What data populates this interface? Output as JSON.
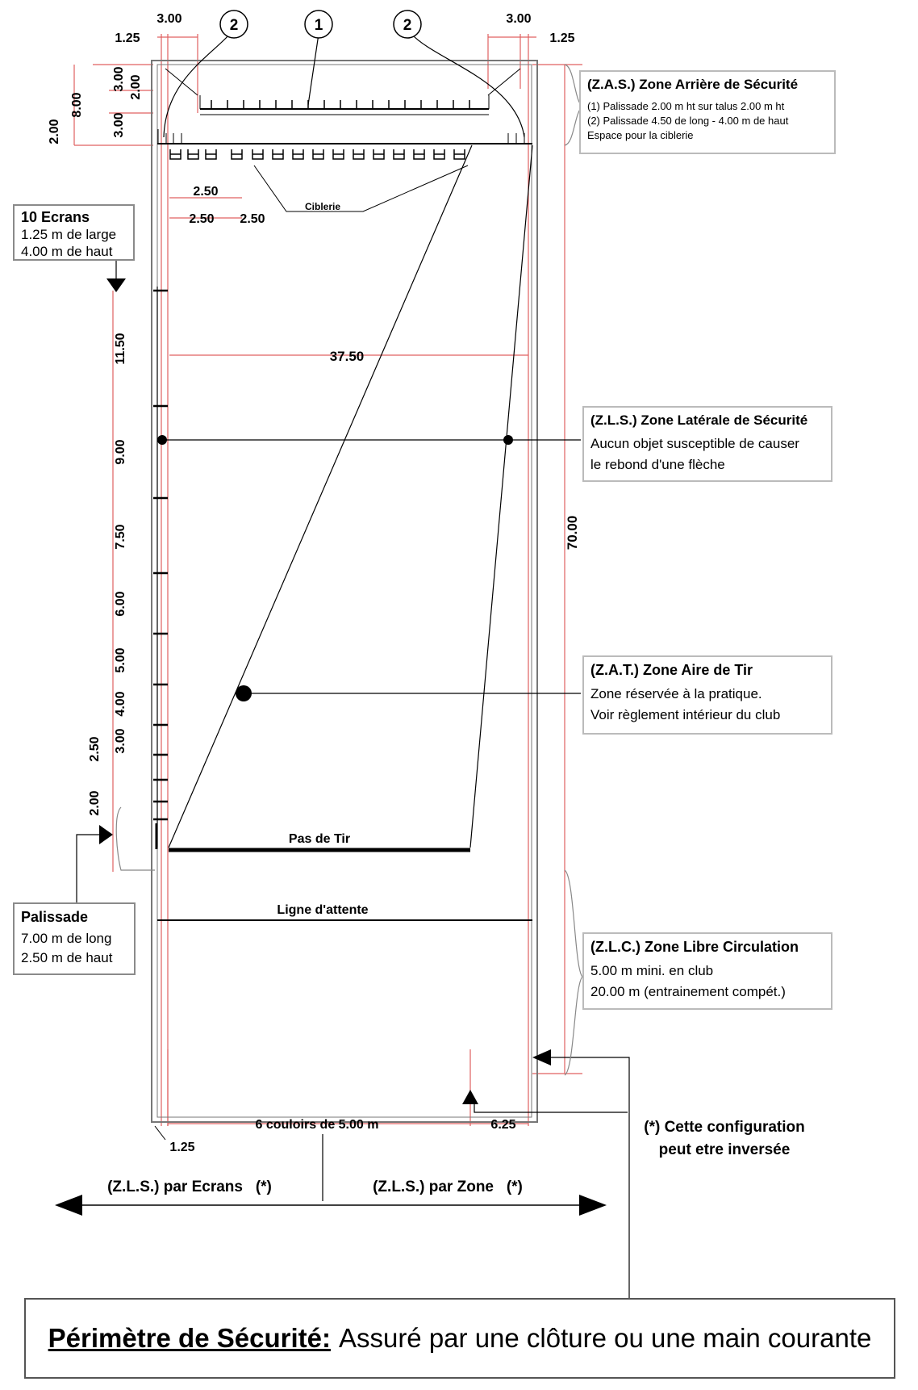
{
  "top_dims": {
    "left_125": "1.25",
    "left_300": "3.00",
    "right_300": "3.00",
    "right_125": "1.25"
  },
  "callouts": {
    "c1": "1",
    "c2a": "2",
    "c2b": "2"
  },
  "left_dims": {
    "d800": "8.00",
    "d300a": "3.00",
    "d200a": "2.00",
    "d300b": "3.00",
    "d200b": "2.00"
  },
  "ciblerie": {
    "d250a": "2.50",
    "d250b": "2.50",
    "d250c": "2.50",
    "label": "Ciblerie"
  },
  "ecrans": {
    "title": "10 Ecrans",
    "line1": "1.25 m de large",
    "line2": "4.00 m de haut"
  },
  "screen_dims": {
    "d1150": "11.50",
    "d900": "9.00",
    "d750": "7.50",
    "d600": "6.00",
    "d500": "5.00",
    "d400": "4.00",
    "d300": "3.00",
    "d250": "2.50",
    "d200": "2.00"
  },
  "width_dim": "37.50",
  "length_dim": "70.00",
  "zas": {
    "title": "(Z.A.S.) Zone Arrière de Sécurité",
    "line1": "(1) Palissade 2.00 m ht sur talus 2.00 m ht",
    "line2": "(2) Palissade 4.50 de long - 4.00 m de haut",
    "line3": "Espace pour la ciblerie"
  },
  "zls": {
    "title": "(Z.L.S.) Zone Latérale de Sécurité",
    "line1": "Aucun objet susceptible de causer",
    "line2": "le rebond d'une flèche"
  },
  "zat": {
    "title": "(Z.A.T.) Zone Aire de Tir",
    "line1": "Zone réservée à la pratique.",
    "line2": "Voir règlement intérieur du club"
  },
  "pas_de_tir": "Pas de Tir",
  "ligne_attente": "Ligne d'attente",
  "palissade": {
    "title": "Palissade",
    "line1": "7.00 m de long",
    "line2": "2.50 m de haut"
  },
  "zlc": {
    "title": "(Z.L.C.) Zone Libre Circulation",
    "line1": "5.00 m mini. en club",
    "line2": "20.00 m (entrainement compét.)"
  },
  "bottom_dims": {
    "couloirs": "6 couloirs de 5.00 m",
    "d625": "6.25",
    "d125": "1.25"
  },
  "inversee": {
    "line1": "(*) Cette configuration",
    "line2": "peut etre inversée"
  },
  "arrows": {
    "left": "(Z.L.S.) par Ecrans   (*)",
    "right": "(Z.L.S.) par Zone   (*)"
  },
  "perimeter": {
    "label": "Périmètre de Sécurité:",
    "text": "Assuré par une clôture ou une main courante"
  },
  "colors": {
    "dimension": "#e06060",
    "line": "#000000",
    "frame": "#777777"
  }
}
